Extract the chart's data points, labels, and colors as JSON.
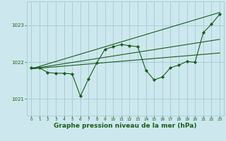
{
  "background_color": "#cce8ee",
  "grid_color": "#aacdd6",
  "line_color": "#1a5c1a",
  "marker_color": "#1a5c1a",
  "xlabel": "Graphe pression niveau de la mer (hPa)",
  "xlabel_fontsize": 6.5,
  "ylabel_ticks": [
    1021,
    1022,
    1023
  ],
  "xticks": [
    0,
    1,
    2,
    3,
    4,
    5,
    6,
    7,
    8,
    9,
    10,
    11,
    12,
    13,
    14,
    15,
    16,
    17,
    18,
    19,
    20,
    21,
    22,
    23
  ],
  "xlim": [
    -0.5,
    23.5
  ],
  "ylim": [
    1020.55,
    1023.65
  ],
  "series": {
    "line1": {
      "x": [
        0,
        1,
        2,
        3,
        4,
        5,
        6,
        7,
        8,
        9,
        10,
        11,
        12,
        13,
        14,
        15,
        16,
        17,
        18,
        19,
        20,
        21,
        22,
        23
      ],
      "y": [
        1021.85,
        1021.85,
        1021.72,
        1021.7,
        1021.7,
        1021.68,
        1021.08,
        1021.55,
        1021.98,
        1022.35,
        1022.42,
        1022.48,
        1022.45,
        1022.42,
        1021.78,
        1021.52,
        1021.6,
        1021.85,
        1021.92,
        1022.02,
        1022.0,
        1022.8,
        1023.03,
        1023.3
      ],
      "marker": "D",
      "markersize": 2.2
    },
    "line2_trend": {
      "x": [
        0,
        23
      ],
      "y": [
        1021.82,
        1023.35
      ]
    },
    "line3_trend": {
      "x": [
        0,
        23
      ],
      "y": [
        1021.82,
        1022.62
      ]
    },
    "line4_trend": {
      "x": [
        0,
        23
      ],
      "y": [
        1021.82,
        1022.25
      ]
    }
  }
}
